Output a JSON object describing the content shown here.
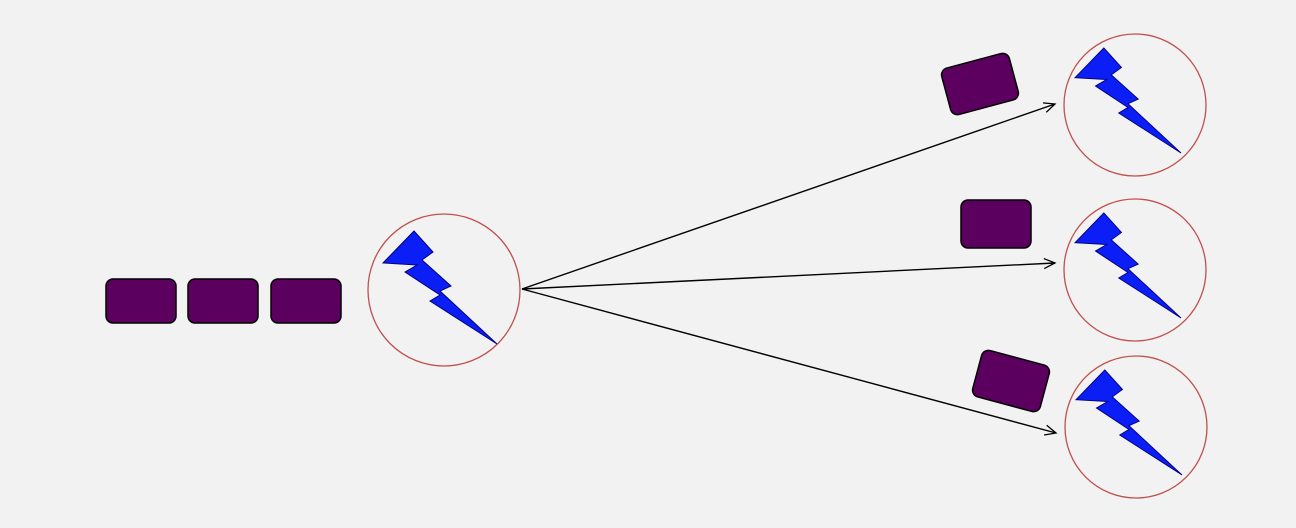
{
  "diagram": {
    "colors": {
      "background": "#f2f2f2",
      "message_fill": "#5c0060",
      "message_stroke": "#000000",
      "node_stroke": "#c0504d",
      "bolt_fill": "#0a1ef5",
      "bolt_stroke": "#000080",
      "edge": "#000000"
    },
    "queue": {
      "message_count": 3
    },
    "source_node": {
      "icon": "lightning-bolt-icon"
    },
    "target_nodes": [
      {
        "icon": "lightning-bolt-icon",
        "has_message": true
      },
      {
        "icon": "lightning-bolt-icon",
        "has_message": true
      },
      {
        "icon": "lightning-bolt-icon",
        "has_message": true
      }
    ]
  }
}
